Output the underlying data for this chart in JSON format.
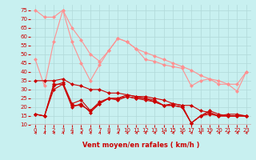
{
  "bg_color": "#c8f0f0",
  "grid_color": "#b0d8d8",
  "xlabel": "Vent moyen/en rafales ( km/h )",
  "xlim": [
    -0.5,
    23.5
  ],
  "ylim": [
    10,
    78
  ],
  "yticks": [
    10,
    15,
    20,
    25,
    30,
    35,
    40,
    45,
    50,
    55,
    60,
    65,
    70,
    75
  ],
  "xticks": [
    0,
    1,
    2,
    3,
    4,
    5,
    6,
    7,
    8,
    9,
    10,
    11,
    12,
    13,
    14,
    15,
    16,
    17,
    18,
    19,
    20,
    21,
    22,
    23
  ],
  "lines": [
    {
      "x": [
        0,
        1,
        2,
        3,
        4,
        5,
        6,
        7,
        8,
        9,
        10,
        11,
        12,
        13,
        14,
        15,
        16,
        17,
        18,
        19,
        20,
        21,
        22,
        23
      ],
      "y": [
        75,
        71,
        71,
        75,
        65,
        58,
        50,
        46,
        52,
        59,
        57,
        53,
        51,
        49,
        47,
        45,
        43,
        41,
        38,
        36,
        35,
        33,
        33,
        40
      ],
      "color": "#ff9090",
      "lw": 0.8,
      "ms": 2.5
    },
    {
      "x": [
        0,
        1,
        2,
        3,
        4,
        5,
        6,
        7,
        8,
        9,
        10,
        11,
        12,
        13,
        14,
        15,
        16,
        17,
        18,
        19,
        20,
        21,
        22,
        23
      ],
      "y": [
        47,
        32,
        57,
        75,
        57,
        45,
        35,
        44,
        52,
        59,
        57,
        53,
        47,
        46,
        44,
        43,
        42,
        32,
        35,
        36,
        33,
        33,
        29,
        40
      ],
      "color": "#ff9090",
      "lw": 0.8,
      "ms": 2.5
    },
    {
      "x": [
        0,
        1,
        2,
        3,
        4,
        5,
        6,
        7,
        8,
        9,
        10,
        11,
        12,
        13,
        14,
        15,
        16,
        17,
        18,
        19,
        20,
        21,
        22,
        23
      ],
      "y": [
        35,
        35,
        35,
        36,
        33,
        32,
        30,
        30,
        28,
        28,
        27,
        26,
        26,
        25,
        24,
        22,
        21,
        21,
        18,
        17,
        15,
        16,
        16,
        15
      ],
      "color": "#cc0000",
      "lw": 0.8,
      "ms": 2.5
    },
    {
      "x": [
        0,
        1,
        2,
        3,
        4,
        5,
        6,
        7,
        8,
        9,
        10,
        11,
        12,
        13,
        14,
        15,
        16,
        17,
        18,
        19,
        20,
        21,
        22,
        23
      ],
      "y": [
        16,
        15,
        33,
        33,
        21,
        21,
        18,
        23,
        25,
        25,
        27,
        26,
        25,
        24,
        21,
        22,
        21,
        11,
        15,
        16,
        15,
        15,
        15,
        15
      ],
      "color": "#cc0000",
      "lw": 0.8,
      "ms": 2.5
    },
    {
      "x": [
        0,
        1,
        2,
        3,
        4,
        5,
        6,
        7,
        8,
        9,
        10,
        11,
        12,
        13,
        14,
        15,
        16,
        17,
        18,
        19,
        20,
        21,
        22,
        23
      ],
      "y": [
        16,
        15,
        32,
        34,
        22,
        24,
        18,
        22,
        25,
        25,
        26,
        25,
        25,
        23,
        21,
        21,
        20,
        11,
        15,
        18,
        16,
        15,
        15,
        15
      ],
      "color": "#cc0000",
      "lw": 0.8,
      "ms": 2.5
    },
    {
      "x": [
        0,
        1,
        2,
        3,
        4,
        5,
        6,
        7,
        8,
        9,
        10,
        11,
        12,
        13,
        14,
        15,
        16,
        17,
        18,
        19,
        20,
        21,
        22,
        23
      ],
      "y": [
        16,
        15,
        30,
        33,
        20,
        22,
        17,
        22,
        25,
        24,
        26,
        25,
        24,
        23,
        21,
        21,
        20,
        11,
        15,
        17,
        15,
        15,
        15,
        15
      ],
      "color": "#cc0000",
      "lw": 0.8,
      "ms": 2.5
    }
  ],
  "arrow_color": "#cc0000",
  "axis_color": "#cc0000",
  "tick_color": "#cc0000",
  "tick_fontsize": 5,
  "xlabel_fontsize": 6,
  "xlabel_color": "#cc0000",
  "marker": "D"
}
